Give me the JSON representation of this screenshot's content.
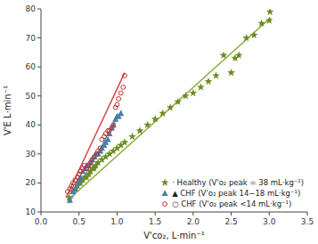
{
  "chart_data": {
    "type": "scatter",
    "x_label": "V'co₂, L·min⁻¹",
    "y_label": "V'E L·min⁻¹",
    "xlim": [
      0,
      3.5
    ],
    "ylim": [
      10,
      80
    ],
    "xticks": [
      {
        "value": 0,
        "label": "0.0"
      },
      0.5,
      {
        "value": 1.0,
        "label": "1.0"
      },
      1.5,
      {
        "value": 2.0,
        "label": "2.0"
      },
      2.5,
      {
        "value": 3.0,
        "label": "3.0"
      },
      3.5
    ],
    "yticks": [
      10,
      20,
      30,
      40,
      50,
      60,
      70,
      80
    ],
    "grid": false,
    "legend": "lower right",
    "series": [
      {
        "name": "· Healthy (V'o₂ peak = 38 mL·kg⁻¹)",
        "type": "scatter",
        "marker": "star",
        "color": "#6b8c23",
        "x": [
          0.37,
          0.42,
          0.45,
          0.48,
          0.5,
          0.52,
          0.55,
          0.58,
          0.6,
          0.63,
          0.65,
          0.68,
          0.7,
          0.72,
          0.75,
          0.8,
          0.85,
          0.9,
          0.95,
          1.0,
          1.05,
          1.1,
          1.2,
          1.3,
          1.4,
          1.5,
          1.6,
          1.7,
          1.8,
          1.9,
          2.0,
          2.1,
          2.2,
          2.3,
          2.4,
          2.5,
          2.55,
          2.6,
          2.7,
          2.8,
          2.9,
          3.0,
          3.01
        ],
        "values": [
          15,
          17,
          18,
          19,
          20,
          20,
          21,
          22,
          22,
          23,
          24,
          25,
          25,
          26,
          27,
          28,
          29,
          30,
          31,
          32,
          33,
          34,
          36,
          38,
          40,
          42,
          44,
          46,
          48,
          50,
          51,
          53,
          55,
          57,
          64,
          58,
          63,
          64,
          70,
          71,
          75,
          76,
          79
        ]
      },
      {
        "name": "▲ CHF (V'o₂ peak 14−18 mL·kg⁻¹)",
        "type": "scatter",
        "marker": "triangle",
        "color": "#4a7fa5",
        "x": [
          0.38,
          0.42,
          0.45,
          0.48,
          0.5,
          0.52,
          0.55,
          0.58,
          0.6,
          0.62,
          0.65,
          0.67,
          0.7,
          0.72,
          0.75,
          0.78,
          0.8,
          0.83,
          0.85,
          0.88,
          0.9,
          0.93,
          0.95,
          0.98,
          1.0,
          1.02,
          1.05
        ],
        "values": [
          14,
          17,
          18,
          20,
          21,
          22,
          24,
          25,
          26,
          26,
          27,
          28,
          29,
          30,
          30,
          31,
          32,
          33,
          34,
          35,
          37,
          39,
          40,
          42,
          43,
          43,
          44
        ]
      },
      {
        "name": "○ CHF (V'o₂ peak <14 mL·kg⁻¹)",
        "type": "scatter",
        "marker": "open-circle",
        "color": "#c03030",
        "x": [
          0.35,
          0.38,
          0.4,
          0.42,
          0.45,
          0.48,
          0.5,
          0.52,
          0.55,
          0.57,
          0.6,
          0.62,
          0.65,
          0.67,
          0.7,
          0.73,
          0.75,
          0.78,
          0.8,
          0.83,
          0.85,
          0.88,
          0.9,
          0.93,
          0.95,
          0.98,
          1.0,
          1.02,
          1.05,
          1.08,
          1.1
        ],
        "values": [
          17,
          18,
          19,
          20,
          21,
          22,
          23,
          24,
          25,
          26,
          25,
          26,
          27,
          28,
          29,
          30,
          31,
          32,
          35,
          36,
          37,
          38,
          38,
          39,
          40,
          46,
          47,
          49,
          51,
          53,
          57
        ]
      },
      {
        "type": "line",
        "color": "#8aaa30",
        "x": [
          0.35,
          3.02
        ],
        "values": [
          14.0,
          77.0
        ]
      },
      {
        "type": "line",
        "color": "#6aaabf",
        "x": [
          0.37,
          1.06
        ],
        "values": [
          13.0,
          45.0
        ]
      },
      {
        "type": "line",
        "color": "#dd4444",
        "x": [
          0.33,
          1.1
        ],
        "values": [
          15.0,
          58.0
        ]
      }
    ]
  }
}
